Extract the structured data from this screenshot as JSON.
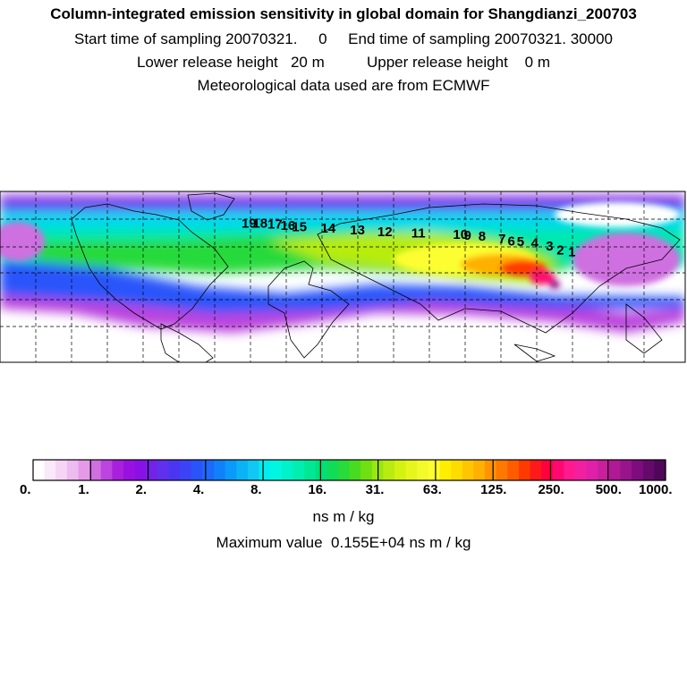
{
  "title_lines": [
    "Column-integrated emission sensitivity in global domain for Shangdianzi_200703",
    "Start time of sampling 20070321.     0     End time of sampling 20070321. 30000",
    "Lower release height   20 m          Upper release height    0 m",
    "Meteorological data used are from ECMWF"
  ],
  "chart_data": {
    "type": "heatmap",
    "title": "Column-integrated emission sensitivity in global domain for Shangdianzi_200703",
    "units": "ns m / kg",
    "max_value_text": "Maximum value  0.155E+04 ns m / kg",
    "colorbar_ticks": [
      "0.",
      "1.",
      "2.",
      "4.",
      "8.",
      "16.",
      "31.",
      "63.",
      "125.",
      "250.",
      "500.",
      "1000."
    ],
    "colorbar_colors": [
      "#ffffff",
      "#fbe8fb",
      "#f5d4f5",
      "#eebbf0",
      "#e59ae8",
      "#cf6fe0",
      "#bb45de",
      "#a820dc",
      "#9a10e0",
      "#8a10e8",
      "#7322e6",
      "#6030ee",
      "#4a36f2",
      "#3a44f6",
      "#2a54fa",
      "#1e68fb",
      "#1080fb",
      "#0a9af9",
      "#0ab2f6",
      "#10c8f3",
      "#00eeee",
      "#00f6e0",
      "#00f2c8",
      "#00eeb0",
      "#00e896",
      "#00e07a",
      "#10dc58",
      "#28da3a",
      "#48dc20",
      "#70e010",
      "#9ae610",
      "#b8ec10",
      "#d4f210",
      "#e6f61c",
      "#f2fa2c",
      "#fcfe30",
      "#ffee00",
      "#ffdc00",
      "#ffc600",
      "#ffb000",
      "#ff9400",
      "#ff7800",
      "#ff5c00",
      "#ff3a00",
      "#ff1a1a",
      "#ff0040",
      "#ff0870",
      "#ff1a90",
      "#f020a0",
      "#e020a8",
      "#c8209c",
      "#b01894",
      "#98148a",
      "#7e0c7e",
      "#640a6a",
      "#50065a"
    ],
    "map_projection": "global domain, lat-lon",
    "trajectory_labels": [
      "1",
      "2",
      "3",
      "4",
      "5",
      "6",
      "7",
      "8",
      "9",
      "10",
      "11",
      "12",
      "13",
      "14",
      "15",
      "16",
      "17",
      "18",
      "19"
    ],
    "trajectory_points": [
      {
        "label": "1",
        "lon": 118.5,
        "lat": 40.6
      },
      {
        "label": "2",
        "lon": 112.4,
        "lat": 42.1
      },
      {
        "label": "3",
        "lon": 106.8,
        "lat": 45.0
      },
      {
        "label": "4",
        "lon": 99.0,
        "lat": 47.3
      },
      {
        "label": "5",
        "lon": 91.5,
        "lat": 48.4
      },
      {
        "label": "6",
        "lon": 86.7,
        "lat": 48.8
      },
      {
        "label": "7",
        "lon": 81.8,
        "lat": 50.4
      },
      {
        "label": "8",
        "lon": 71.3,
        "lat": 52.5
      },
      {
        "label": "9",
        "lon": 63.7,
        "lat": 53.2
      },
      {
        "label": "10",
        "lon": 58.0,
        "lat": 53.8
      },
      {
        "label": "11",
        "lon": 36.1,
        "lat": 54.9
      },
      {
        "label": "12",
        "lon": 18.3,
        "lat": 55.9
      },
      {
        "label": "13",
        "lon": 3.9,
        "lat": 57.3
      },
      {
        "label": "14",
        "lon": -11.5,
        "lat": 58.8
      },
      {
        "label": "15",
        "lon": -26.6,
        "lat": 59.8
      },
      {
        "label": "16",
        "lon": -32.6,
        "lat": 60.8
      },
      {
        "label": "17",
        "lon": -39.5,
        "lat": 61.9
      },
      {
        "label": "18",
        "lon": -47.3,
        "lat": 62.3
      },
      {
        "label": "19",
        "lon": -53.1,
        "lat": 62.3
      }
    ],
    "xlim": [
      -180,
      180
    ],
    "ylim": [
      -40,
      90
    ]
  }
}
